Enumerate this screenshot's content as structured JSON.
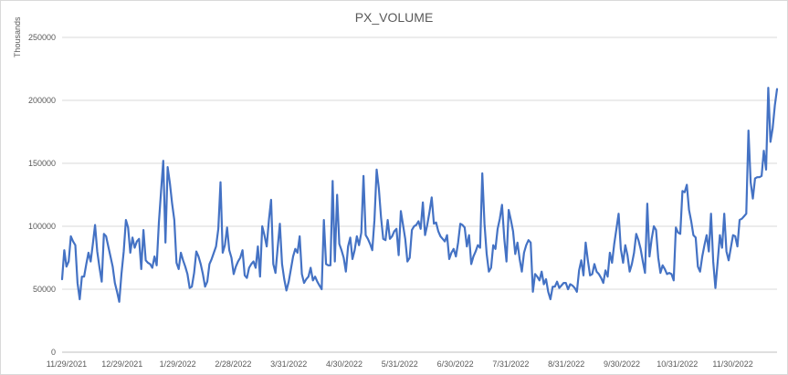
{
  "chart_data": {
    "type": "line",
    "title": "PX_VOLUME",
    "ylabel": "Thousands",
    "xlabel": "",
    "ylim": [
      0,
      250000
    ],
    "yticks": [
      0,
      50000,
      100000,
      150000,
      200000,
      250000
    ],
    "ytick_labels": [
      "0",
      "50000",
      "100000",
      "150000",
      "200000",
      "250000"
    ],
    "xtick_labels": [
      "11/29/2021",
      "12/29/2021",
      "1/29/2022",
      "2/28/2022",
      "3/31/2022",
      "4/30/2022",
      "5/31/2022",
      "6/30/2022",
      "7/31/2022",
      "8/31/2022",
      "9/30/2022",
      "10/31/2022",
      "11/30/2022"
    ],
    "grid": "horizontal",
    "legend": "none",
    "line_color": "#4472c4",
    "series": [
      {
        "x_start": "11/29/2021",
        "x_end": "12/23/2022",
        "values": [
          58000,
          81000,
          68000,
          72000,
          92000,
          88000,
          85000,
          55000,
          42000,
          60000,
          60000,
          70000,
          79000,
          72000,
          86000,
          101000,
          80000,
          67000,
          56000,
          94000,
          92000,
          84000,
          76000,
          68000,
          55000,
          48000,
          40000,
          62000,
          80000,
          105000,
          99000,
          79000,
          91000,
          83000,
          88000,
          90000,
          66000,
          97000,
          73000,
          71000,
          70000,
          67000,
          76000,
          69000,
          103000,
          128000,
          152000,
          87000,
          147000,
          134000,
          118000,
          105000,
          71000,
          66000,
          79000,
          73000,
          68000,
          62000,
          51000,
          52000,
          63000,
          80000,
          76000,
          70000,
          62000,
          52000,
          56000,
          70000,
          74000,
          79000,
          84000,
          98000,
          135000,
          79000,
          85000,
          99000,
          81000,
          75000,
          62000,
          68000,
          72000,
          75000,
          81000,
          61000,
          59000,
          67000,
          70000,
          72000,
          67000,
          84000,
          60000,
          100000,
          93000,
          84000,
          105000,
          121000,
          70000,
          63000,
          83000,
          102000,
          70000,
          58000,
          49000,
          56000,
          66000,
          76000,
          82000,
          79000,
          92000,
          62000,
          55000,
          58000,
          60000,
          67000,
          57000,
          60000,
          56000,
          53000,
          50000,
          105000,
          70000,
          69000,
          69000,
          136000,
          72000,
          125000,
          86000,
          81000,
          75000,
          64000,
          84000,
          91000,
          74000,
          81000,
          92000,
          85000,
          95000,
          140000,
          93000,
          90000,
          86000,
          81000,
          105000,
          145000,
          130000,
          107000,
          90000,
          89000,
          105000,
          90000,
          92000,
          96000,
          98000,
          77000,
          112000,
          101000,
          90000,
          72000,
          75000,
          97000,
          100000,
          101000,
          104000,
          98000,
          119000,
          93000,
          101000,
          111000,
          123000,
          102000,
          103000,
          96000,
          92000,
          90000,
          88000,
          93000,
          74000,
          79000,
          82000,
          76000,
          87000,
          102000,
          101000,
          99000,
          84000,
          93000,
          70000,
          76000,
          80000,
          85000,
          83000,
          142000,
          102000,
          78000,
          64000,
          67000,
          85000,
          82000,
          98000,
          106000,
          117000,
          90000,
          72000,
          113000,
          105000,
          96000,
          78000,
          87000,
          74000,
          64000,
          79000,
          85000,
          89000,
          87000,
          48000,
          62000,
          60000,
          57000,
          64000,
          54000,
          58000,
          48000,
          42000,
          52000,
          52000,
          56000,
          51000,
          53000,
          55000,
          55000,
          50000,
          54000,
          53000,
          51000,
          48000,
          65000,
          73000,
          61000,
          87000,
          73000,
          61000,
          62000,
          70000,
          64000,
          62000,
          59000,
          55000,
          65000,
          60000,
          79000,
          71000,
          86000,
          98000,
          110000,
          82000,
          71000,
          85000,
          77000,
          64000,
          70000,
          79000,
          94000,
          89000,
          82000,
          72000,
          63000,
          118000,
          76000,
          90000,
          100000,
          97000,
          75000,
          63000,
          69000,
          66000,
          62000,
          63000,
          62000,
          57000,
          99000,
          95000,
          94000,
          128000,
          127000,
          133000,
          113000,
          104000,
          93000,
          91000,
          68000,
          64000,
          76000,
          85000,
          93000,
          80000,
          110000,
          72000,
          51000,
          72000,
          93000,
          83000,
          110000,
          80000,
          73000,
          83000,
          93000,
          92000,
          84000,
          105000,
          106000,
          108000,
          110000,
          176000,
          135000,
          122000,
          138000,
          139000,
          139000,
          140000,
          160000,
          145000,
          210000,
          167000,
          178000,
          196000,
          209000
        ]
      }
    ]
  }
}
